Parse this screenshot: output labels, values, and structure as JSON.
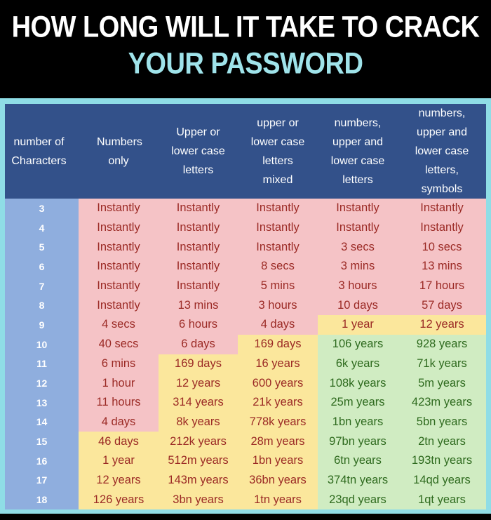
{
  "title": {
    "line1": "HOW LONG WILL IT TAKE TO CRACK",
    "line2": "YOUR PASSWORD"
  },
  "colors": {
    "header": "#33518a",
    "red": "#f5c3c6",
    "yellow": "#fbe79c",
    "green": "#d0ecc2",
    "number_column": "#8faede",
    "border": "#8fdde6",
    "title_accent": "#9fe3ea"
  },
  "table": {
    "columns": [
      "number of Characters",
      "Numbers only",
      "Upper or lower case letters",
      "upper or lower case letters mixed",
      "numbers, upper and lower case letters",
      "numbers, upper and lower case letters, symbols"
    ],
    "rows": [
      {
        "chars": "3",
        "cells": [
          {
            "text": "Instantly",
            "color": "red"
          },
          {
            "text": "Instantly",
            "color": "red"
          },
          {
            "text": "Instantly",
            "color": "red"
          },
          {
            "text": "Instantly",
            "color": "red"
          },
          {
            "text": "Instantly",
            "color": "red"
          }
        ]
      },
      {
        "chars": "4",
        "cells": [
          {
            "text": "Instantly",
            "color": "red"
          },
          {
            "text": "Instantly",
            "color": "red"
          },
          {
            "text": "Instantly",
            "color": "red"
          },
          {
            "text": "Instantly",
            "color": "red"
          },
          {
            "text": "Instantly",
            "color": "red"
          }
        ]
      },
      {
        "chars": "5",
        "cells": [
          {
            "text": "Instantly",
            "color": "red"
          },
          {
            "text": "Instantly",
            "color": "red"
          },
          {
            "text": "Instantly",
            "color": "red"
          },
          {
            "text": "3 secs",
            "color": "red"
          },
          {
            "text": "10 secs",
            "color": "red"
          }
        ]
      },
      {
        "chars": "6",
        "cells": [
          {
            "text": "Instantly",
            "color": "red"
          },
          {
            "text": "Instantly",
            "color": "red"
          },
          {
            "text": "8 secs",
            "color": "red"
          },
          {
            "text": "3 mins",
            "color": "red"
          },
          {
            "text": "13 mins",
            "color": "red"
          }
        ]
      },
      {
        "chars": "7",
        "cells": [
          {
            "text": "Instantly",
            "color": "red"
          },
          {
            "text": "Instantly",
            "color": "red"
          },
          {
            "text": "5 mins",
            "color": "red"
          },
          {
            "text": "3 hours",
            "color": "red"
          },
          {
            "text": "17 hours",
            "color": "red"
          }
        ]
      },
      {
        "chars": "8",
        "cells": [
          {
            "text": "Instantly",
            "color": "red"
          },
          {
            "text": "13 mins",
            "color": "red"
          },
          {
            "text": "3 hours",
            "color": "red"
          },
          {
            "text": "10 days",
            "color": "red"
          },
          {
            "text": "57 days",
            "color": "red"
          }
        ]
      },
      {
        "chars": "9",
        "cells": [
          {
            "text": "4 secs",
            "color": "red"
          },
          {
            "text": "6 hours",
            "color": "red"
          },
          {
            "text": "4 days",
            "color": "red"
          },
          {
            "text": "1 year",
            "color": "yellow"
          },
          {
            "text": "12 years",
            "color": "yellow"
          }
        ]
      },
      {
        "chars": "10",
        "cells": [
          {
            "text": "40 secs",
            "color": "red"
          },
          {
            "text": "6 days",
            "color": "red"
          },
          {
            "text": "169 days",
            "color": "yellow"
          },
          {
            "text": "106 years",
            "color": "green"
          },
          {
            "text": "928 years",
            "color": "green"
          }
        ]
      },
      {
        "chars": "11",
        "cells": [
          {
            "text": "6 mins",
            "color": "red"
          },
          {
            "text": "169 days",
            "color": "yellow"
          },
          {
            "text": "16 years",
            "color": "yellow"
          },
          {
            "text": "6k years",
            "color": "green"
          },
          {
            "text": "71k years",
            "color": "green"
          }
        ]
      },
      {
        "chars": "12",
        "cells": [
          {
            "text": "1 hour",
            "color": "red"
          },
          {
            "text": "12 years",
            "color": "yellow"
          },
          {
            "text": "600 years",
            "color": "yellow"
          },
          {
            "text": "108k years",
            "color": "green"
          },
          {
            "text": "5m years",
            "color": "green"
          }
        ]
      },
      {
        "chars": "13",
        "cells": [
          {
            "text": "11 hours",
            "color": "red"
          },
          {
            "text": "314 years",
            "color": "yellow"
          },
          {
            "text": "21k years",
            "color": "yellow"
          },
          {
            "text": "25m years",
            "color": "green"
          },
          {
            "text": "423m years",
            "color": "green"
          }
        ]
      },
      {
        "chars": "14",
        "cells": [
          {
            "text": "4 days",
            "color": "red"
          },
          {
            "text": "8k years",
            "color": "yellow"
          },
          {
            "text": "778k years",
            "color": "yellow"
          },
          {
            "text": "1bn years",
            "color": "green"
          },
          {
            "text": "5bn years",
            "color": "green"
          }
        ]
      },
      {
        "chars": "15",
        "cells": [
          {
            "text": "46 days",
            "color": "yellow"
          },
          {
            "text": "212k years",
            "color": "yellow"
          },
          {
            "text": "28m years",
            "color": "yellow"
          },
          {
            "text": "97bn years",
            "color": "green"
          },
          {
            "text": "2tn years",
            "color": "green"
          }
        ]
      },
      {
        "chars": "16",
        "cells": [
          {
            "text": "1 year",
            "color": "yellow"
          },
          {
            "text": "512m years",
            "color": "yellow"
          },
          {
            "text": "1bn years",
            "color": "yellow"
          },
          {
            "text": "6tn years",
            "color": "green"
          },
          {
            "text": "193tn years",
            "color": "green"
          }
        ]
      },
      {
        "chars": "17",
        "cells": [
          {
            "text": "12 years",
            "color": "yellow"
          },
          {
            "text": "143m years",
            "color": "yellow"
          },
          {
            "text": "36bn years",
            "color": "yellow"
          },
          {
            "text": "374tn years",
            "color": "green"
          },
          {
            "text": "14qd years",
            "color": "green"
          }
        ]
      },
      {
        "chars": "18",
        "cells": [
          {
            "text": "126 years",
            "color": "yellow"
          },
          {
            "text": "3bn years",
            "color": "yellow"
          },
          {
            "text": "1tn years",
            "color": "yellow"
          },
          {
            "text": "23qd years",
            "color": "green"
          },
          {
            "text": "1qt years",
            "color": "green"
          }
        ]
      }
    ]
  }
}
